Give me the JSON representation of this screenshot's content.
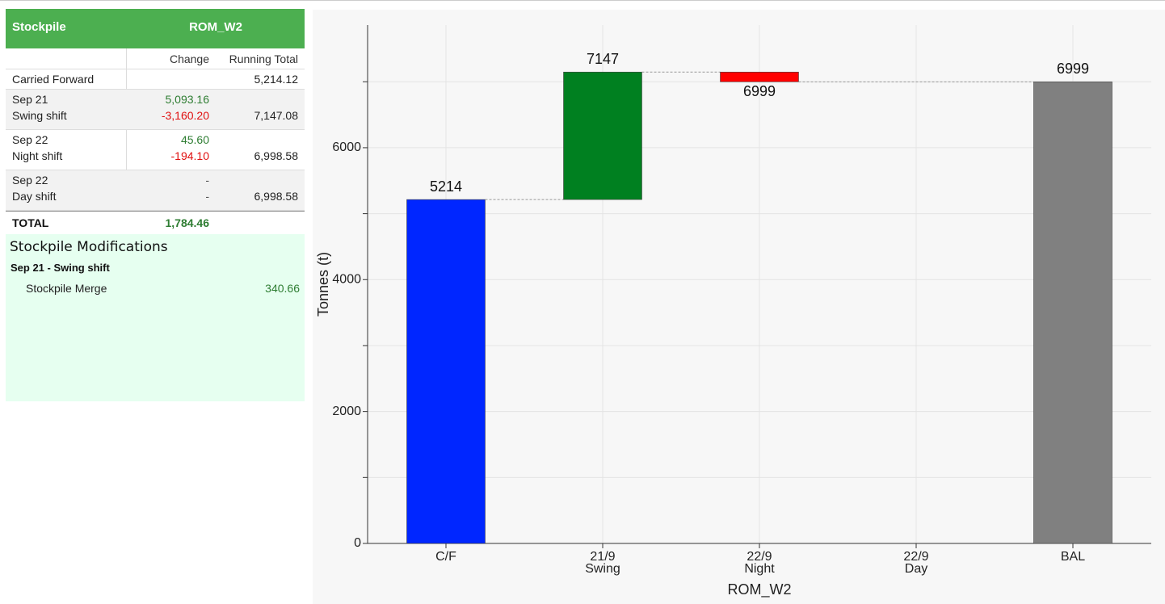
{
  "table": {
    "header": [
      "Stockpile",
      "ROM_W2"
    ],
    "columns": [
      "Change",
      "Running Total"
    ],
    "groups": [
      [
        [
          "Carried Forward",
          null,
          "5,214.12"
        ]
      ],
      [
        [
          "Sep 21",
          "5,093.16",
          null
        ],
        [
          "Swing shift",
          "-3,160.20",
          "7,147.08"
        ]
      ],
      [
        [
          "Sep 22",
          "45.60",
          null
        ],
        [
          "Night shift",
          "-194.10",
          "6,998.58"
        ]
      ],
      [
        [
          "Sep 22",
          "-",
          null
        ],
        [
          "Day shift",
          "-",
          "6,998.58"
        ]
      ]
    ],
    "total": [
      "TOTAL",
      "1,784.46"
    ]
  },
  "modifications": {
    "title": "Stockpile Modifications",
    "sections": [
      {
        "heading": "Sep 21 - Swing shift",
        "items": [
          [
            "Stockpile Merge",
            "340.66"
          ]
        ]
      }
    ]
  },
  "chart_data": {
    "type": "waterfall",
    "categories": [
      [
        "C/F"
      ],
      [
        "21/9",
        "Swing"
      ],
      [
        "22/9",
        "Night"
      ],
      [
        "22/9",
        "Day"
      ],
      [
        "BAL"
      ]
    ],
    "values": [
      5214,
      7147,
      6999,
      null,
      6999
    ],
    "colors": [
      "#0026ff",
      "#008020",
      "#ff0000",
      null,
      "#808080"
    ],
    "ylabel": "Tonnes (t)",
    "xlabel": "ROM_W2",
    "ylim": [
      0,
      7860
    ],
    "yticks": [
      0,
      2000,
      4000,
      6000
    ],
    "yminor": [
      1000,
      3000,
      5000,
      7000
    ],
    "grid": true
  }
}
